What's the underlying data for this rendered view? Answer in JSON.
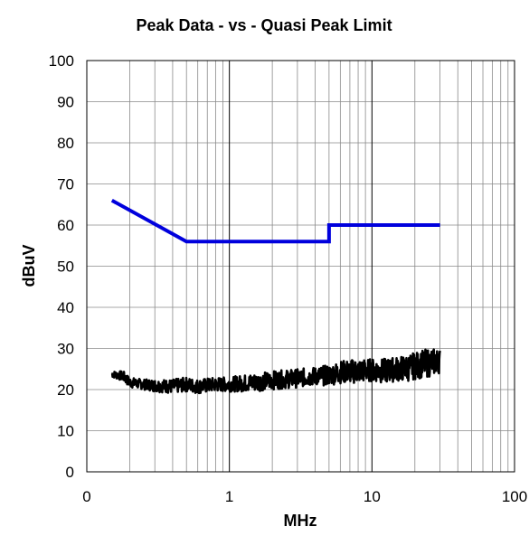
{
  "chart_data": {
    "type": "line",
    "title": "Peak Data - vs - Quasi Peak Limit",
    "xlabel": "MHz",
    "ylabel": "dBuV",
    "x_scale": "log",
    "xlim": [
      0.1,
      100
    ],
    "ylim": [
      0,
      100
    ],
    "x_tick_labels": [
      "0",
      "1",
      "10",
      "100"
    ],
    "y_ticks": [
      0,
      10,
      20,
      30,
      40,
      50,
      60,
      70,
      80,
      90,
      100
    ],
    "grid": true,
    "series": [
      {
        "color": "#0000dd",
        "x": [
          0.15,
          0.5,
          5,
          5,
          30
        ],
        "y": [
          66,
          56,
          56,
          60,
          60
        ]
      },
      {
        "color": "#000000",
        "x": [
          0.15,
          0.18,
          0.2,
          0.25,
          0.3,
          0.4,
          0.5,
          0.6,
          0.8,
          1,
          1.5,
          2,
          3,
          4,
          5,
          6,
          8,
          10,
          12,
          15,
          18,
          20,
          25,
          30
        ],
        "y_low": [
          23,
          22,
          20.5,
          20,
          19.5,
          19,
          19.5,
          19,
          19.5,
          19.5,
          19.5,
          20,
          20.5,
          21,
          21,
          21.5,
          21.5,
          22,
          21.5,
          22,
          22,
          22.5,
          23,
          24
        ],
        "y_high": [
          24.5,
          24.5,
          23,
          22.5,
          22.5,
          22.5,
          23,
          22.5,
          23,
          23,
          24,
          24.5,
          25,
          25.5,
          26,
          27,
          27.5,
          27.5,
          27.5,
          28,
          28.5,
          29,
          30,
          30
        ]
      }
    ]
  }
}
